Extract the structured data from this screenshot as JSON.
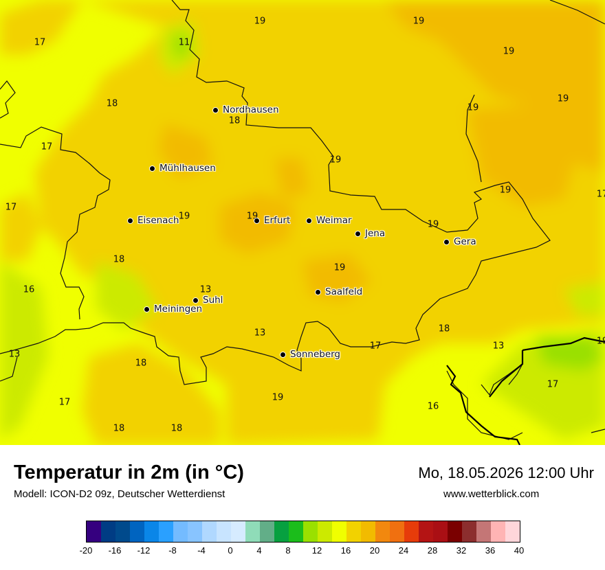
{
  "map": {
    "cities": [
      {
        "name": "Nordhausen"
      },
      {
        "name": "Mühlhausen"
      },
      {
        "name": "Eisenach"
      },
      {
        "name": "Erfurt"
      },
      {
        "name": "Weimar"
      },
      {
        "name": "Jena"
      },
      {
        "name": "Gera"
      },
      {
        "name": "Suhl"
      },
      {
        "name": "Meiningen"
      },
      {
        "name": "Saalfeld"
      },
      {
        "name": "Sonneberg"
      }
    ],
    "values": [
      "19",
      "19",
      "17",
      "11",
      "19",
      "19",
      "18",
      "18",
      "19",
      "17",
      "19",
      "17",
      "19",
      "17",
      "19",
      "19",
      "19",
      "19",
      "18",
      "19",
      "16",
      "13",
      "18",
      "13",
      "18",
      "17",
      "13",
      "13",
      "18",
      "17",
      "19",
      "16",
      "17",
      "18",
      "16"
    ]
  },
  "footer": {
    "title": "Temperatur in 2m (in °C)",
    "subtitle": "Modell: ICON-D2 09z, Deutscher Wetterdienst",
    "datetime": "Mo, 18.05.2026 12:00 Uhr",
    "website": "www.wetterblick.com"
  },
  "legend": {
    "colors": [
      "#35007f",
      "#003c84",
      "#004a8c",
      "#0064c0",
      "#0a86e8",
      "#2aa0ff",
      "#74bbff",
      "#88c4ff",
      "#b0d8ff",
      "#c8e4ff",
      "#d6ebff",
      "#8fdcb8",
      "#62ae88",
      "#07a040",
      "#1bbd1b",
      "#9ae000",
      "#ccea00",
      "#f0ff00",
      "#f2d200",
      "#f2bb00",
      "#f2880e",
      "#f07010",
      "#e63c0a",
      "#b41414",
      "#aa0f14",
      "#7a0000",
      "#8c2e2e",
      "#c47676",
      "#ffb4b4",
      "#ffd6da"
    ],
    "ticks": [
      "-20",
      "-16",
      "-12",
      "-8",
      "-4",
      "0",
      "4",
      "8",
      "12",
      "16",
      "20",
      "24",
      "28",
      "32",
      "36",
      "40"
    ]
  }
}
